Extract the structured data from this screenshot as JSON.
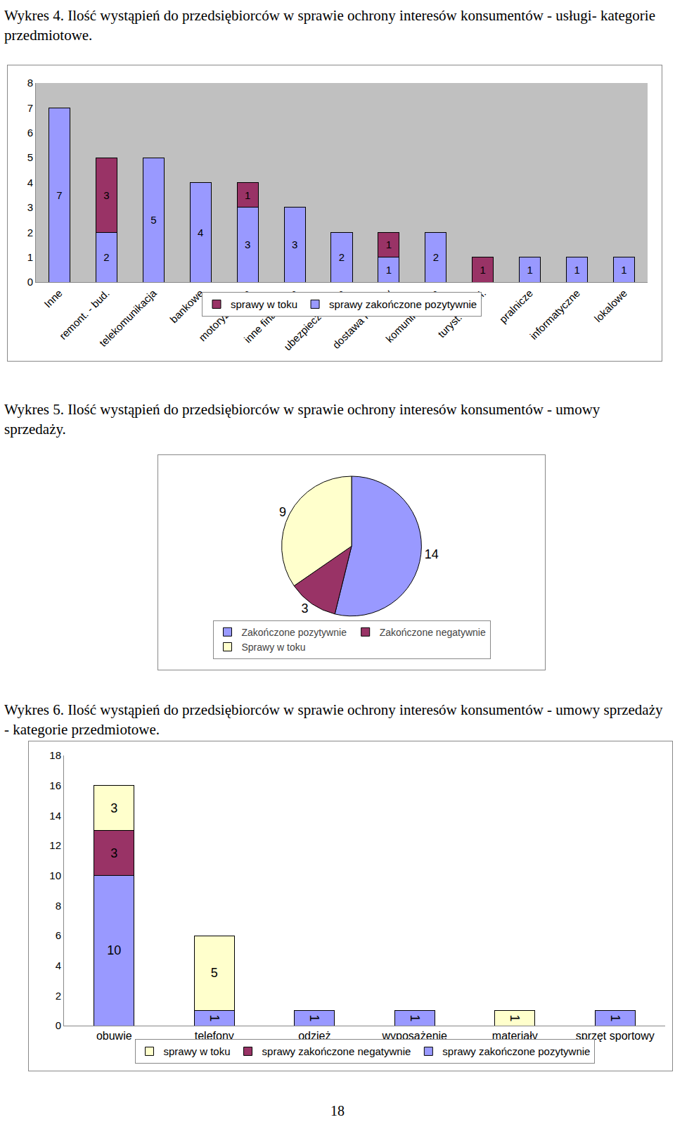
{
  "chart_data": [
    {
      "type": "bar",
      "stacked": true,
      "data_labels": true,
      "grid": false,
      "legend": "bottom",
      "title": "Wykres 4. Ilość wystąpień do przedsiębiorców w sprawie ochrony interesów konsumentów - usługi- kategorie przedmiotowe.",
      "categories": [
        "Inne",
        "remont. - bud.",
        "telekomunikacja",
        "bankowe",
        "motoryzacyjne",
        "inne finansowe",
        "ubezpieczeniowe",
        "dostawa mediów",
        "komunikacyjne",
        "turyst. i hotel.",
        "pralnicze",
        "informatyczne",
        "lokalowe"
      ],
      "series": [
        {
          "name": "sprawy zakończone pozytywnie",
          "color": "#9999ff",
          "values": [
            7,
            2,
            5,
            4,
            3,
            3,
            2,
            1,
            2,
            null,
            1,
            1,
            1
          ]
        },
        {
          "name": "sprawy w toku",
          "color": "#993366",
          "values": [
            null,
            3,
            null,
            null,
            1,
            null,
            null,
            1,
            null,
            1,
            null,
            null,
            null
          ]
        }
      ],
      "ylim": [
        0,
        8
      ],
      "yticks": [
        0,
        1,
        2,
        3,
        4,
        5,
        6,
        7,
        8
      ]
    },
    {
      "type": "pie",
      "data_labels": true,
      "legend": "bottom",
      "title": "Wykres 5. Ilość wystąpień do przedsiębiorców w sprawie ochrony interesów konsumentów - umowy sprzedaży.",
      "categories": [
        "Zakończone pozytywnie",
        "Zakończone negatywnie",
        "Sprawy w toku"
      ],
      "values": [
        14,
        3,
        9
      ],
      "colors": [
        "#9999ff",
        "#993366",
        "#ffffcc"
      ]
    },
    {
      "type": "bar",
      "stacked": true,
      "data_labels": true,
      "grid": false,
      "legend": "bottom",
      "title": "Wykres 6. Ilość wystąpień do przedsiębiorców w sprawie ochrony interesów konsumentów - umowy sprzedaży - kategorie przedmiotowe.",
      "categories": [
        "obuwie",
        "telefony komórkowe",
        "odzież",
        "wyposażenie wnętrz",
        "materiały budowlane",
        "sprzęt sportowy"
      ],
      "series": [
        {
          "name": "sprawy zakończone pozytywnie",
          "color": "#9999ff",
          "values": [
            10,
            1,
            1,
            1,
            null,
            1
          ]
        },
        {
          "name": "sprawy zakończone negatywnie",
          "color": "#993366",
          "values": [
            3,
            null,
            null,
            null,
            null,
            null
          ]
        },
        {
          "name": "sprawy w toku",
          "color": "#ffffcc",
          "values": [
            3,
            5,
            null,
            null,
            1,
            null
          ]
        }
      ],
      "ylim": [
        0,
        18
      ],
      "yticks": [
        0,
        2,
        4,
        6,
        8,
        10,
        12,
        14,
        16,
        18
      ]
    }
  ],
  "page_number": 18
}
